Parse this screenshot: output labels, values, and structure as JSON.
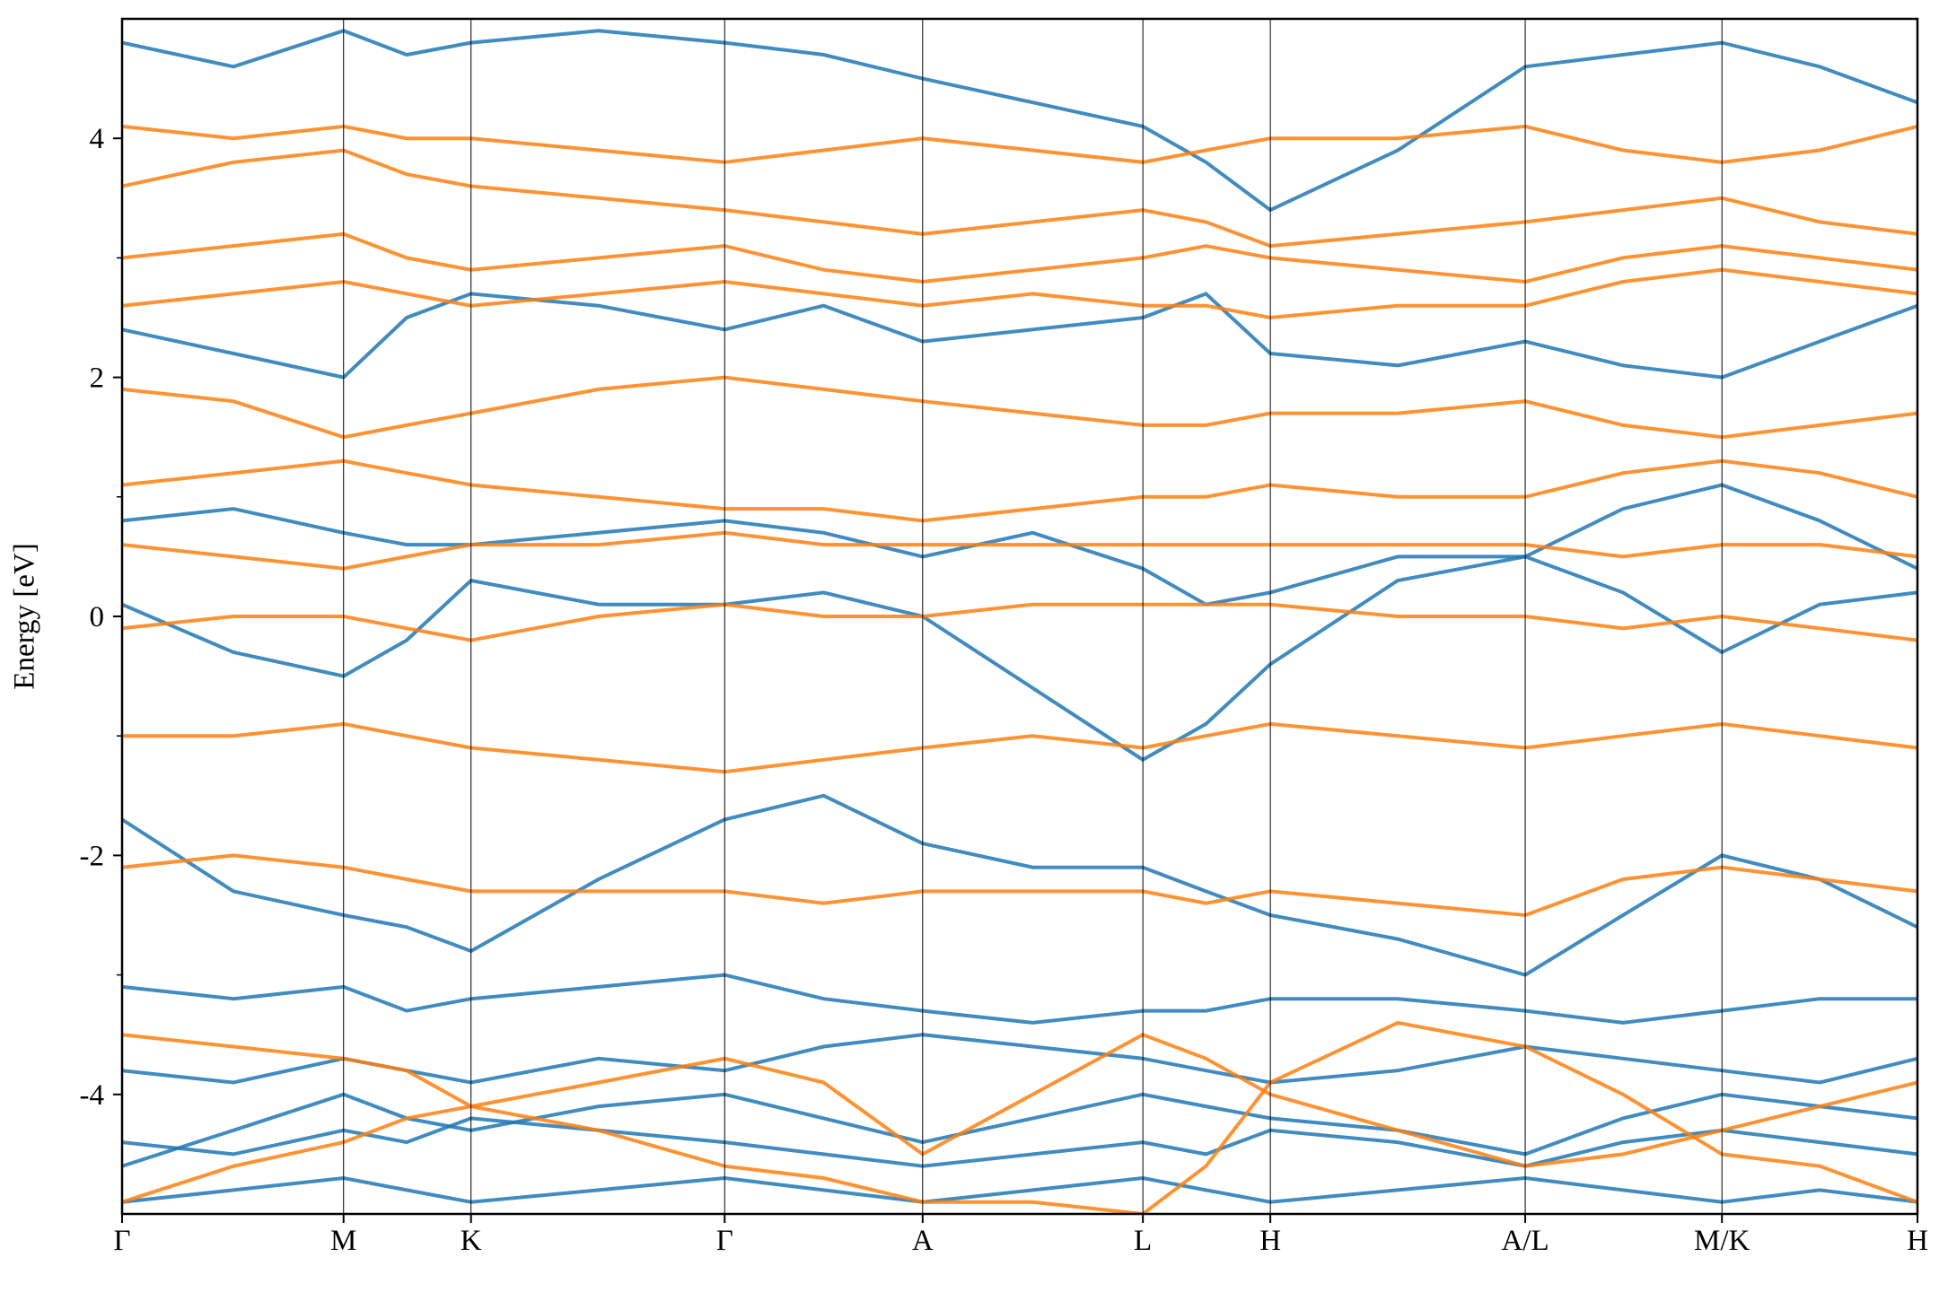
{
  "chart_data": {
    "type": "line",
    "y_label": "Energy [eV]",
    "x": [
      0,
      90,
      179,
      230,
      282,
      385,
      487,
      567,
      647,
      736,
      825,
      876,
      928,
      1031,
      1134,
      1213,
      1293,
      1372,
      1451
    ],
    "xlim": [
      0,
      1451
    ],
    "xticks": [
      {
        "value": 0,
        "label": "Γ"
      },
      {
        "value": 179,
        "label": "M"
      },
      {
        "value": 282,
        "label": "K"
      },
      {
        "value": 487,
        "label": "Γ"
      },
      {
        "value": 647,
        "label": "A"
      },
      {
        "value": 825,
        "label": "L"
      },
      {
        "value": 928,
        "label": "H"
      },
      {
        "value": 1134,
        "label": "A/L"
      },
      {
        "value": 1293,
        "label": "M/K"
      },
      {
        "value": 1451,
        "label": "H"
      }
    ],
    "ylim": [
      -5,
      5
    ],
    "yticks": [
      -4,
      -2,
      0,
      2,
      4
    ],
    "yminorticks": [
      -3,
      -1,
      1,
      3
    ],
    "series": [
      {
        "color": "#1f77b4",
        "values": [
          -4.9,
          -4.8,
          -4.7,
          -4.8,
          -4.9,
          -4.8,
          -4.7,
          -4.8,
          -4.9,
          -4.8,
          -4.7,
          -4.8,
          -4.9,
          -4.8,
          -4.7,
          -4.8,
          -4.9,
          -4.8,
          -4.9
        ]
      },
      {
        "color": "#1f77b4",
        "values": [
          -4.4,
          -4.5,
          -4.3,
          -4.4,
          -4.2,
          -4.3,
          -4.4,
          -4.5,
          -4.6,
          -4.5,
          -4.4,
          -4.5,
          -4.3,
          -4.4,
          -4.6,
          -4.4,
          -4.3,
          -4.4,
          -4.5
        ]
      },
      {
        "color": "#1f77b4",
        "values": [
          -4.6,
          -4.3,
          -4.0,
          -4.2,
          -4.3,
          -4.1,
          -4.0,
          -4.2,
          -4.4,
          -4.2,
          -4.0,
          -4.1,
          -4.2,
          -4.3,
          -4.5,
          -4.2,
          -4.0,
          -4.1,
          -4.2
        ]
      },
      {
        "color": "#1f77b4",
        "values": [
          -3.8,
          -3.9,
          -3.7,
          -3.8,
          -3.9,
          -3.7,
          -3.8,
          -3.6,
          -3.5,
          -3.6,
          -3.7,
          -3.8,
          -3.9,
          -3.8,
          -3.6,
          -3.7,
          -3.8,
          -3.9,
          -3.7
        ]
      },
      {
        "color": "#1f77b4",
        "values": [
          -3.1,
          -3.2,
          -3.1,
          -3.3,
          -3.2,
          -3.1,
          -3.0,
          -3.2,
          -3.3,
          -3.4,
          -3.3,
          -3.3,
          -3.2,
          -3.2,
          -3.3,
          -3.4,
          -3.3,
          -3.2,
          -3.2
        ]
      },
      {
        "color": "#1f77b4",
        "values": [
          -1.7,
          -2.3,
          -2.5,
          -2.6,
          -2.8,
          -2.2,
          -1.7,
          -1.5,
          -1.9,
          -2.1,
          -2.1,
          -2.3,
          -2.5,
          -2.7,
          -3.0,
          -2.5,
          -2.0,
          -2.2,
          -2.6
        ]
      },
      {
        "color": "#1f77b4",
        "values": [
          0.1,
          -0.3,
          -0.5,
          -0.2,
          0.3,
          0.1,
          0.1,
          0.2,
          0.0,
          -0.6,
          -1.2,
          -0.9,
          -0.4,
          0.3,
          0.5,
          0.2,
          -0.3,
          0.1,
          0.2
        ]
      },
      {
        "color": "#1f77b4",
        "values": [
          0.8,
          0.9,
          0.7,
          0.6,
          0.6,
          0.7,
          0.8,
          0.7,
          0.5,
          0.7,
          0.4,
          0.1,
          0.2,
          0.5,
          0.5,
          0.9,
          1.1,
          0.8,
          0.4
        ]
      },
      {
        "color": "#1f77b4",
        "values": [
          2.4,
          2.2,
          2.0,
          2.5,
          2.7,
          2.6,
          2.4,
          2.6,
          2.3,
          2.4,
          2.5,
          2.7,
          2.2,
          2.1,
          2.3,
          2.1,
          2.0,
          2.3,
          2.6
        ]
      },
      {
        "color": "#1f77b4",
        "values": [
          4.8,
          4.6,
          4.9,
          4.7,
          4.8,
          4.9,
          4.8,
          4.7,
          4.5,
          4.3,
          4.1,
          3.8,
          3.4,
          3.9,
          4.6,
          4.7,
          4.8,
          4.6,
          4.3
        ]
      },
      {
        "color": "#ff7f0e",
        "values": [
          3.6,
          3.8,
          3.9,
          3.7,
          3.6,
          3.5,
          3.4,
          3.3,
          3.2,
          3.3,
          3.4,
          3.3,
          3.1,
          3.2,
          3.3,
          3.4,
          3.5,
          3.3,
          3.2
        ]
      },
      {
        "color": "#ff7f0e",
        "values": [
          3.0,
          3.1,
          3.2,
          3.0,
          2.9,
          3.0,
          3.1,
          2.9,
          2.8,
          2.9,
          3.0,
          3.1,
          3.0,
          2.9,
          2.8,
          3.0,
          3.1,
          3.0,
          2.9
        ]
      },
      {
        "color": "#ff7f0e",
        "values": [
          4.1,
          4.0,
          4.1,
          4.0,
          4.0,
          3.9,
          3.8,
          3.9,
          4.0,
          3.9,
          3.8,
          3.9,
          4.0,
          4.0,
          4.1,
          3.9,
          3.8,
          3.9,
          4.1
        ]
      },
      {
        "color": "#ff7f0e",
        "values": [
          2.6,
          2.7,
          2.8,
          2.7,
          2.6,
          2.7,
          2.8,
          2.7,
          2.6,
          2.7,
          2.6,
          2.6,
          2.5,
          2.6,
          2.6,
          2.8,
          2.9,
          2.8,
          2.7
        ]
      },
      {
        "color": "#ff7f0e",
        "values": [
          1.9,
          1.8,
          1.5,
          1.6,
          1.7,
          1.9,
          2.0,
          1.9,
          1.8,
          1.7,
          1.6,
          1.6,
          1.7,
          1.7,
          1.8,
          1.6,
          1.5,
          1.6,
          1.7
        ]
      },
      {
        "color": "#ff7f0e",
        "values": [
          1.1,
          1.2,
          1.3,
          1.2,
          1.1,
          1.0,
          0.9,
          0.9,
          0.8,
          0.9,
          1.0,
          1.0,
          1.1,
          1.0,
          1.0,
          1.2,
          1.3,
          1.2,
          1.0
        ]
      },
      {
        "color": "#ff7f0e",
        "values": [
          0.6,
          0.5,
          0.4,
          0.5,
          0.6,
          0.6,
          0.7,
          0.6,
          0.6,
          0.6,
          0.6,
          0.6,
          0.6,
          0.6,
          0.6,
          0.5,
          0.6,
          0.6,
          0.5
        ]
      },
      {
        "color": "#ff7f0e",
        "values": [
          -0.1,
          0.0,
          0.0,
          -0.1,
          -0.2,
          0.0,
          0.1,
          0.0,
          0.0,
          0.1,
          0.1,
          0.1,
          0.1,
          0.0,
          0.0,
          -0.1,
          0.0,
          -0.1,
          -0.2
        ]
      },
      {
        "color": "#ff7f0e",
        "values": [
          -1.0,
          -1.0,
          -0.9,
          -1.0,
          -1.1,
          -1.2,
          -1.3,
          -1.2,
          -1.1,
          -1.0,
          -1.1,
          -1.0,
          -0.9,
          -1.0,
          -1.1,
          -1.0,
          -0.9,
          -1.0,
          -1.1
        ]
      },
      {
        "color": "#ff7f0e",
        "values": [
          -2.1,
          -2.0,
          -2.1,
          -2.2,
          -2.3,
          -2.3,
          -2.3,
          -2.4,
          -2.3,
          -2.3,
          -2.3,
          -2.4,
          -2.3,
          -2.4,
          -2.5,
          -2.2,
          -2.1,
          -2.2,
          -2.3
        ]
      },
      {
        "color": "#ff7f0e",
        "values": [
          -3.5,
          -3.6,
          -3.7,
          -3.8,
          -4.1,
          -3.9,
          -3.7,
          -3.9,
          -4.5,
          -4.0,
          -3.5,
          -3.7,
          -4.0,
          -4.3,
          -4.6,
          -4.5,
          -4.3,
          -4.1,
          -3.9
        ]
      },
      {
        "color": "#ff7f0e",
        "values": [
          -4.9,
          -4.6,
          -4.4,
          -4.2,
          -4.1,
          -4.3,
          -4.6,
          -4.7,
          -4.9,
          -4.9,
          -5.0,
          -4.6,
          -3.9,
          -3.4,
          -3.6,
          -4.0,
          -4.5,
          -4.6,
          -4.9
        ]
      }
    ]
  }
}
